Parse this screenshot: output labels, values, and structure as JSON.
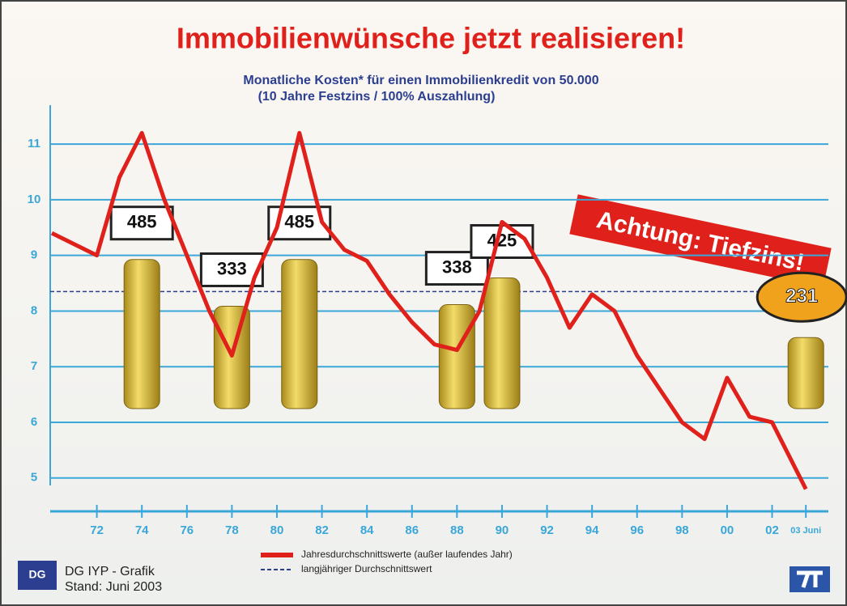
{
  "chart_data": {
    "type": "line",
    "title": "Immobilienwünsche jetzt realisieren!",
    "subtitle": [
      "Monatliche Kosten* für einen Immobilienkredit von 50.000",
      "(10 Jahre Festzins / 100% Auszahlung)"
    ],
    "x": [
      1970,
      1971,
      1972,
      1973,
      1974,
      1975,
      1976,
      1977,
      1978,
      1979,
      1980,
      1981,
      1982,
      1983,
      1984,
      1985,
      1986,
      1987,
      1988,
      1989,
      1990,
      1991,
      1992,
      1993,
      1994,
      1995,
      1996,
      1997,
      1998,
      1999,
      2000,
      2001,
      2002,
      2003.5
    ],
    "series": [
      {
        "name": "Jahresdurchschnittswerte (außer laufendes Jahr)",
        "color": "#e0201b",
        "values": [
          9.4,
          9.2,
          9.0,
          10.4,
          11.2,
          10.0,
          9.0,
          8.0,
          7.2,
          8.6,
          9.5,
          11.2,
          9.6,
          9.1,
          8.9,
          8.3,
          7.8,
          7.4,
          7.3,
          8.0,
          9.6,
          9.3,
          8.6,
          7.7,
          8.3,
          8.0,
          7.2,
          6.6,
          6.0,
          5.7,
          6.8,
          6.1,
          6.0,
          4.8
        ]
      }
    ],
    "average": {
      "name": "langjähriger Durchschnittswert",
      "value": 8.35
    },
    "costs": {
      "x": [
        1974,
        1978,
        1981,
        1988,
        1990,
        2003.5
      ],
      "values": [
        485,
        333,
        485,
        338,
        425,
        231
      ]
    },
    "xlim": [
      1970,
      2004.5
    ],
    "ylim": [
      4.4,
      11.7
    ],
    "xticks": [
      {
        "value": 1972,
        "label": "72"
      },
      {
        "value": 1974,
        "label": "74"
      },
      {
        "value": 1976,
        "label": "76"
      },
      {
        "value": 1978,
        "label": "78"
      },
      {
        "value": 1980,
        "label": "80"
      },
      {
        "value": 1982,
        "label": "82"
      },
      {
        "value": 1984,
        "label": "84"
      },
      {
        "value": 1986,
        "label": "86"
      },
      {
        "value": 1988,
        "label": "88"
      },
      {
        "value": 1990,
        "label": "90"
      },
      {
        "value": 1992,
        "label": "92"
      },
      {
        "value": 1994,
        "label": "94"
      },
      {
        "value": 1996,
        "label": "96"
      },
      {
        "value": 1998,
        "label": "98"
      },
      {
        "value": 2000,
        "label": "00"
      },
      {
        "value": 2002,
        "label": "02"
      },
      {
        "value": 2003.5,
        "label": "03 Juni"
      }
    ],
    "yticks": [
      5,
      6,
      7,
      8,
      9,
      10,
      11
    ],
    "grid": true,
    "banner": "Achtung: Tiefzins!",
    "source": [
      "DG IYP - Grafik",
      "Stand: Juni 2003"
    ]
  }
}
